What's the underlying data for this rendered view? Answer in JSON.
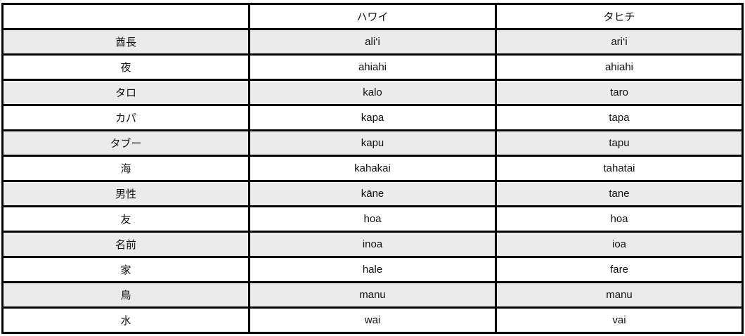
{
  "table": {
    "headers": [
      "",
      "ハワイ",
      "タヒチ"
    ],
    "rows": [
      [
        "酋長",
        "ali‘i",
        "ari‘i"
      ],
      [
        "夜",
        "ahiahi",
        "ahiahi"
      ],
      [
        "タロ",
        "kalo",
        "taro"
      ],
      [
        "カパ",
        "kapa",
        "tapa"
      ],
      [
        "タブー",
        "kapu",
        "tapu"
      ],
      [
        "海",
        "kahakai",
        "tahatai"
      ],
      [
        "男性",
        "kāne",
        "tane"
      ],
      [
        "友",
        "hoa",
        "hoa"
      ],
      [
        "名前",
        "inoa",
        "ioa"
      ],
      [
        "家",
        "hale",
        "fare"
      ],
      [
        "鳥",
        "manu",
        "manu"
      ],
      [
        "水",
        "wai",
        "vai"
      ]
    ]
  },
  "colors": {
    "alt_row": "#ebebeb",
    "border": "#000000"
  }
}
